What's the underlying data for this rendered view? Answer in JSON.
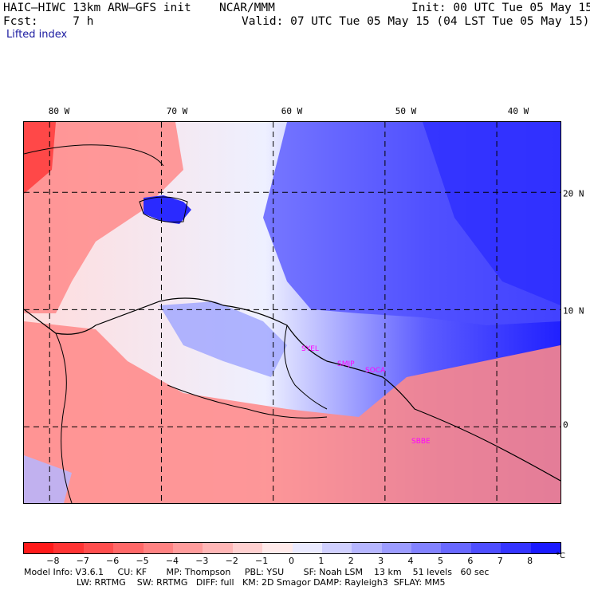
{
  "header": {
    "model": "HAIC–HIWC 13km ARW–GFS init",
    "org": "NCAR/MMM",
    "init": "Init: 00 UTC Tue 05 May 15",
    "fcst": "Fcst:     7 h",
    "valid": "Valid: 07 UTC Tue 05 May 15 (04 LST Tue 05 May 15)",
    "field": "Lifted index"
  },
  "map": {
    "lon_labels": [
      "80 W",
      "70 W",
      "60 W",
      "50 W",
      "40 W"
    ],
    "lon_values": [
      -80,
      -70,
      -60,
      -50,
      -40
    ],
    "lat_labels": [
      "20 N",
      "10 N",
      "0"
    ],
    "lat_values": [
      20,
      10,
      0
    ],
    "lon_range": [
      -82.3,
      -34.3
    ],
    "lat_range": [
      -6.5,
      26.0
    ],
    "station_labels": [
      "SYEL",
      "SMJP",
      "SOCA",
      "SBBE"
    ],
    "station_color": "#ff00ff"
  },
  "legend": {
    "tick_labels": [
      "−8",
      "−7",
      "−6",
      "−5",
      "−4",
      "−3",
      "−2",
      "−1",
      "0",
      "1",
      "2",
      "3",
      "4",
      "5",
      "6",
      "7",
      "8"
    ],
    "unit": "°C",
    "colors": [
      "#ff1a1a",
      "#ff3434",
      "#ff4e4e",
      "#ff6868",
      "#ff8282",
      "#ff9c9c",
      "#ffb6b6",
      "#ffd0d0",
      "#ffeaea",
      "#eaeaff",
      "#d0d0ff",
      "#b6b6ff",
      "#9c9cff",
      "#8282ff",
      "#6868ff",
      "#4e4eff",
      "#3434ff",
      "#1a1aff"
    ]
  },
  "info": {
    "line1": "Model Info: V3.6.1     CU: KF       MP: Thompson     PBL: YSU       SF: Noah LSM    13 km    51 levels   60 sec",
    "line2": "LW: RRTMG    SW: RRTMG   DIFF: full   KM: 2D Smagor DAMP: Rayleigh3  SFLAY: MM5"
  }
}
